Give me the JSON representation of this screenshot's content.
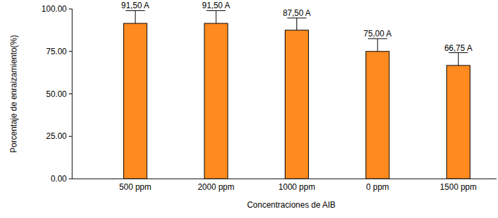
{
  "chart_data": {
    "type": "bar",
    "x_label": "Concentraciones de AIB",
    "y_label": "Porcentaje de enraizamiento(%)",
    "categories": [
      "500 ppm",
      "2000 ppm",
      "1000 ppm",
      "0 ppm",
      "1500 ppm"
    ],
    "values": [
      91.5,
      91.5,
      87.5,
      75,
      66.75
    ],
    "value_labels": [
      "91,50 A",
      "91,50 A",
      "87,50 A",
      "75,00 A",
      "66,75 A"
    ],
    "errors": [
      7.5,
      7.5,
      7.2,
      7.5,
      7.5
    ],
    "color": "#ff8a1e",
    "ylim": [
      0,
      100
    ],
    "yticks": [
      {
        "value": 0,
        "label": "0.00"
      },
      {
        "value": 25,
        "label": "25.00"
      },
      {
        "value": 50,
        "label": "50.00"
      },
      {
        "value": 75,
        "label": "75.00"
      },
      {
        "value": 100,
        "label": "100.00"
      }
    ],
    "grid": false,
    "data_labels": true
  }
}
